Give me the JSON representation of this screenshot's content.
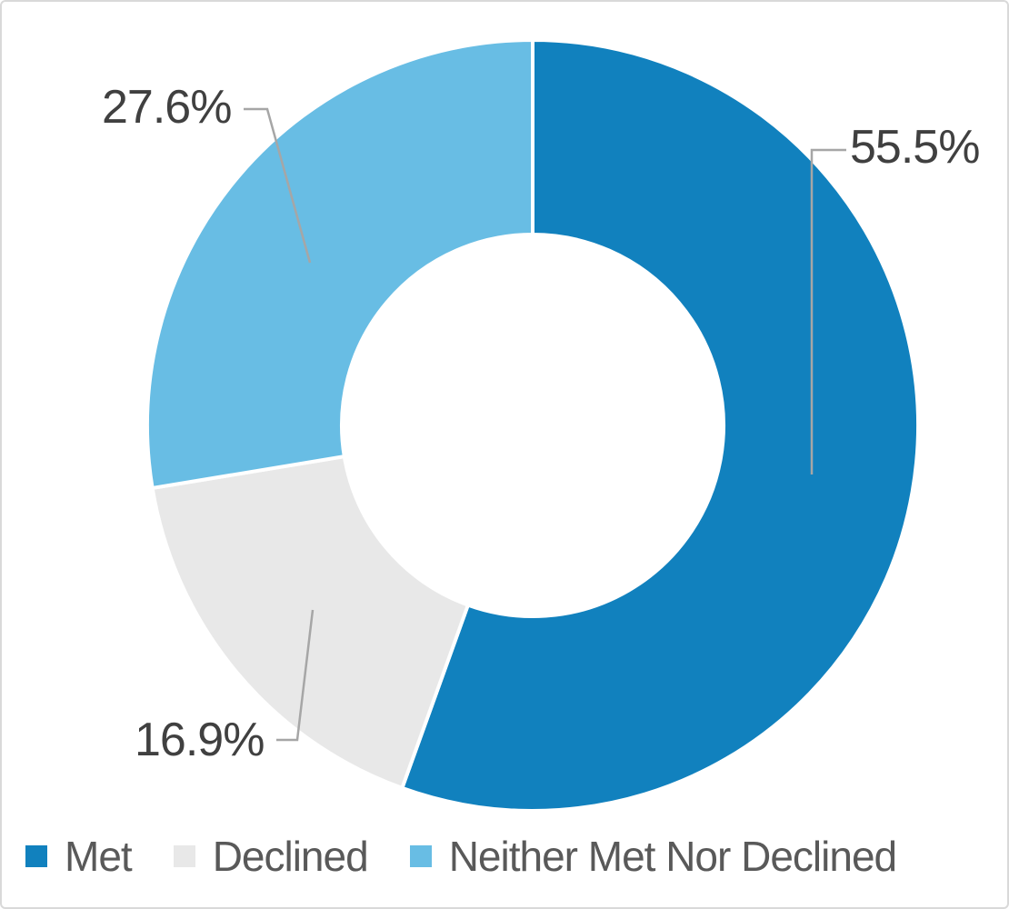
{
  "chart_data": {
    "type": "pie",
    "subtype": "doughnut",
    "title": "",
    "start_angle_deg": 0,
    "direction": "clockwise",
    "hole_radius_pct": 50,
    "legend_position": "bottom",
    "slices": [
      {
        "name": "Met",
        "value": 55.5,
        "label": "55.5%",
        "color": "#1181BE"
      },
      {
        "name": "Declined",
        "value": 16.9,
        "label": "16.9%",
        "color": "#E8E8E8"
      },
      {
        "name": "Neither Met Nor Declined",
        "value": 27.6,
        "label": "27.6%",
        "color": "#68BDE4"
      }
    ],
    "colors": {
      "leader_line": "#A6A6A6",
      "data_label_text": "#404040",
      "legend_text": "#595959",
      "segment_separator": "#FFFFFF",
      "frame_border": "#D9D9D9",
      "background": "#FFFFFF"
    }
  }
}
